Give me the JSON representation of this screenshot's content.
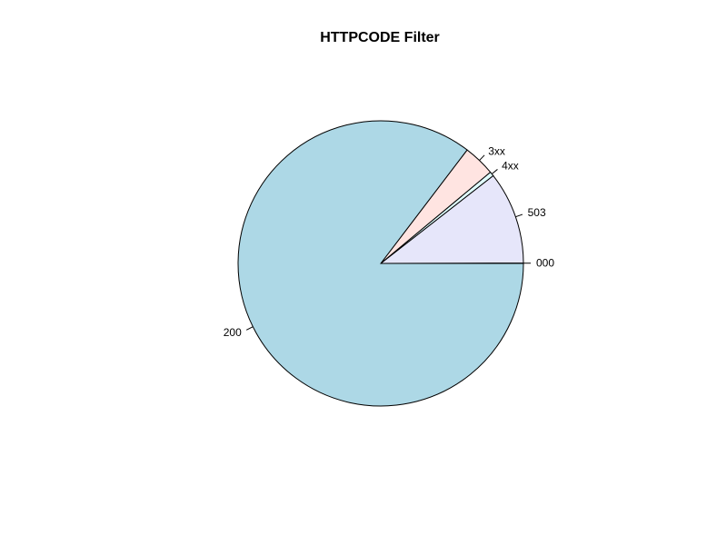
{
  "chart_data": {
    "type": "pie",
    "title": "HTTPCODE Filter",
    "start_angle_deg": 0,
    "direction": "counterclockwise",
    "slices": [
      {
        "label": "000",
        "value": 0.05,
        "color": "#e6e6fa"
      },
      {
        "label": "503",
        "value": 10.5,
        "color": "#e6e6fa"
      },
      {
        "label": "4xx",
        "value": 0.5,
        "color": "#e0ffff"
      },
      {
        "label": "3xx",
        "value": 3.6,
        "color": "#ffe4e1"
      },
      {
        "label": "200",
        "value": 85.35,
        "color": "#add8e6"
      }
    ]
  }
}
